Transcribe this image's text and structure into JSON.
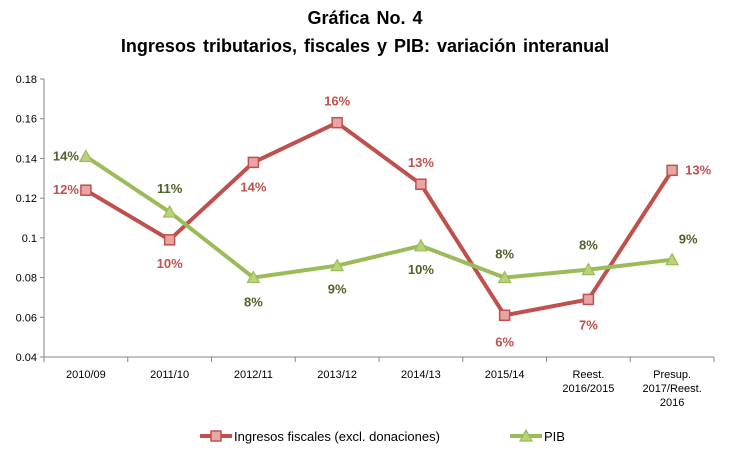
{
  "chart_data": {
    "type": "line",
    "title": "Gráfica No. 4",
    "subtitle": "Ingresos tributarios,  fiscales y PIB: variación interanual",
    "categories": [
      [
        "2010/09"
      ],
      [
        "2011/10"
      ],
      [
        "2012/11"
      ],
      [
        "2013/12"
      ],
      [
        "2014/13"
      ],
      [
        "2015/14"
      ],
      [
        "Reest.",
        "2016/2015"
      ],
      [
        "Presup.",
        "2017/Reest.",
        "2016"
      ]
    ],
    "ylim": [
      0.04,
      0.18
    ],
    "yticks": [
      "0.04",
      "0.06",
      "0.08",
      "0.1",
      "0.12",
      "0.14",
      "0.16",
      "0.18"
    ],
    "grid": false,
    "legend_position": "bottom",
    "series": [
      {
        "name": "Ingresos fiscales (excl. donaciones)",
        "color": "#c0504d",
        "marker": "square",
        "values": [
          0.124,
          0.099,
          0.138,
          0.158,
          0.127,
          0.061,
          0.069,
          0.134
        ],
        "labels": [
          "12%",
          "10%",
          "14%",
          "16%",
          "13%",
          "6%",
          "7%",
          "13%"
        ]
      },
      {
        "name": "PIB",
        "color": "#9bbb59",
        "label_color": "#4f6228",
        "marker": "triangle",
        "values": [
          0.141,
          0.113,
          0.08,
          0.086,
          0.096,
          0.08,
          0.084,
          0.089
        ],
        "labels": [
          "14%",
          "11%",
          "8%",
          "9%",
          "10%",
          "8%",
          "8%",
          "9%"
        ]
      }
    ]
  }
}
